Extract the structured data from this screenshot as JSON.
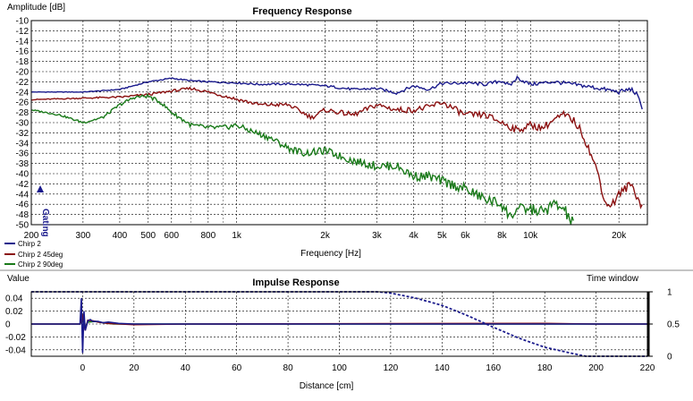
{
  "colors": {
    "series_chirp2": "#1a1a8c",
    "series_chirp2_45deg": "#8b1010",
    "series_chirp2_90deg": "#1a7a1a",
    "window": "#1a1a8c",
    "grid": "#000000",
    "gating_marker": "#1a1a8c"
  },
  "chart_data": [
    {
      "type": "line",
      "title": "Frequency Response",
      "ylabel": "Amplitude [dB]",
      "xlabel": "Frequency [Hz]",
      "xscale": "log",
      "xlim": [
        200,
        25000
      ],
      "ylim": [
        -50,
        -10
      ],
      "y_ticks": [
        -10,
        -12,
        -14,
        -16,
        -18,
        -20,
        -22,
        -24,
        -26,
        -28,
        -30,
        -32,
        -34,
        -36,
        -38,
        -40,
        -42,
        -44,
        -46,
        -48,
        -50
      ],
      "x_ticks": [
        {
          "v": 200,
          "label": "200"
        },
        {
          "v": 300,
          "label": "300"
        },
        {
          "v": 400,
          "label": "400"
        },
        {
          "v": 500,
          "label": "500"
        },
        {
          "v": 600,
          "label": "600"
        },
        {
          "v": 800,
          "label": "800"
        },
        {
          "v": 1000,
          "label": "1k"
        },
        {
          "v": 2000,
          "label": "2k"
        },
        {
          "v": 3000,
          "label": "3k"
        },
        {
          "v": 4000,
          "label": "4k"
        },
        {
          "v": 5000,
          "label": "5k"
        },
        {
          "v": 6000,
          "label": "6k"
        },
        {
          "v": 8000,
          "label": "8k"
        },
        {
          "v": 10000,
          "label": "10k"
        },
        {
          "v": 20000,
          "label": "20k"
        }
      ],
      "grid": true,
      "legend_position": "bottom-left",
      "annotation": "Gating",
      "series": [
        {
          "name": "Chirp 2",
          "color": "#1a1a8c",
          "points": [
            [
              200,
              -24
            ],
            [
              300,
              -24
            ],
            [
              400,
              -23.5
            ],
            [
              500,
              -22
            ],
            [
              600,
              -21.3
            ],
            [
              700,
              -21.8
            ],
            [
              800,
              -22
            ],
            [
              1000,
              -22.2
            ],
            [
              1200,
              -22.5
            ],
            [
              1500,
              -22.4
            ],
            [
              2000,
              -22.8
            ],
            [
              2500,
              -23.5
            ],
            [
              3000,
              -23.3
            ],
            [
              3500,
              -24.2
            ],
            [
              4000,
              -22.8
            ],
            [
              4500,
              -23.5
            ],
            [
              5000,
              -22.3
            ],
            [
              5500,
              -22.3
            ],
            [
              6000,
              -22.2
            ],
            [
              7000,
              -22.5
            ],
            [
              8000,
              -21.8
            ],
            [
              8500,
              -22.8
            ],
            [
              9000,
              -21.2
            ],
            [
              10000,
              -22.5
            ],
            [
              12000,
              -22
            ],
            [
              14000,
              -22.5
            ],
            [
              16000,
              -23
            ],
            [
              18000,
              -23.5
            ],
            [
              20000,
              -24
            ],
            [
              22000,
              -23.4
            ],
            [
              23000,
              -24.5
            ],
            [
              24000,
              -27
            ]
          ]
        },
        {
          "name": "Chirp 2 45deg",
          "color": "#8b1010",
          "points": [
            [
              200,
              -25.5
            ],
            [
              300,
              -25.2
            ],
            [
              400,
              -25
            ],
            [
              500,
              -24.5
            ],
            [
              600,
              -23.8
            ],
            [
              700,
              -23.3
            ],
            [
              800,
              -24
            ],
            [
              1000,
              -25.4
            ],
            [
              1200,
              -26.5
            ],
            [
              1500,
              -26.5
            ],
            [
              1800,
              -29
            ],
            [
              2000,
              -27.5
            ],
            [
              2500,
              -28.5
            ],
            [
              3000,
              -26.5
            ],
            [
              3500,
              -27.5
            ],
            [
              4000,
              -27.5
            ],
            [
              4500,
              -27
            ],
            [
              5000,
              -26
            ],
            [
              6000,
              -28.5
            ],
            [
              7000,
              -28.5
            ],
            [
              8000,
              -30
            ],
            [
              9000,
              -31.5
            ],
            [
              10000,
              -30.5
            ],
            [
              11000,
              -31
            ],
            [
              12000,
              -29.5
            ],
            [
              13000,
              -28.5
            ],
            [
              14000,
              -29.5
            ],
            [
              15000,
              -32
            ],
            [
              16000,
              -36
            ],
            [
              17000,
              -40
            ],
            [
              18000,
              -46
            ],
            [
              19000,
              -46
            ],
            [
              20000,
              -44
            ],
            [
              22000,
              -42
            ],
            [
              24000,
              -46.5
            ]
          ]
        },
        {
          "name": "Chirp 2 90deg",
          "color": "#1a7a1a",
          "points": [
            [
              200,
              -27.5
            ],
            [
              250,
              -28.5
            ],
            [
              300,
              -30
            ],
            [
              350,
              -29
            ],
            [
              400,
              -26.5
            ],
            [
              450,
              -25
            ],
            [
              500,
              -24.8
            ],
            [
              550,
              -26
            ],
            [
              600,
              -28
            ],
            [
              700,
              -30.5
            ],
            [
              800,
              -31
            ],
            [
              900,
              -31
            ],
            [
              1000,
              -30.5
            ],
            [
              1100,
              -31.5
            ],
            [
              1300,
              -33
            ],
            [
              1500,
              -35
            ],
            [
              1700,
              -36
            ],
            [
              2000,
              -35.5
            ],
            [
              2500,
              -37.5
            ],
            [
              3000,
              -38.5
            ],
            [
              3500,
              -38.5
            ],
            [
              4000,
              -40.5
            ],
            [
              4500,
              -40.5
            ],
            [
              5000,
              -41.5
            ],
            [
              6000,
              -43
            ],
            [
              7000,
              -45
            ],
            [
              8000,
              -46
            ],
            [
              8500,
              -48.5
            ],
            [
              9000,
              -47
            ],
            [
              10000,
              -47
            ],
            [
              11000,
              -47.5
            ],
            [
              12000,
              -46
            ],
            [
              13000,
              -47
            ],
            [
              14000,
              -50
            ]
          ]
        }
      ]
    },
    {
      "type": "line",
      "title": "Impulse Response",
      "ylabel": "Value",
      "y2label": "Time window",
      "xlabel": "Distance [cm]",
      "xlim": [
        -20,
        220
      ],
      "ylim": [
        -0.05,
        0.05
      ],
      "y2lim": [
        0,
        1
      ],
      "x_ticks": [
        0,
        20,
        40,
        60,
        80,
        100,
        120,
        140,
        160,
        180,
        200,
        220
      ],
      "y_ticks": [
        {
          "v": 0.04,
          "label": "0.04"
        },
        {
          "v": 0.02,
          "label": "0.02"
        },
        {
          "v": 0,
          "label": "0"
        },
        {
          "v": -0.02,
          "label": "-0.02"
        },
        {
          "v": -0.04,
          "label": "-0.04"
        }
      ],
      "y2_ticks": [
        {
          "v": 1,
          "label": "1"
        },
        {
          "v": 0.5,
          "label": "0.5"
        },
        {
          "v": 0,
          "label": "0"
        }
      ],
      "grid": true,
      "series": [
        {
          "name": "Chirp 2 90deg",
          "color": "#1a7a1a",
          "points": [
            [
              -20,
              0
            ],
            [
              -1,
              0
            ],
            [
              0,
              0.006
            ],
            [
              1,
              -0.005
            ],
            [
              2,
              0.003
            ],
            [
              5,
              0.004
            ],
            [
              8,
              0.002
            ],
            [
              12,
              0
            ],
            [
              220,
              0
            ]
          ]
        },
        {
          "name": "Chirp 2 45deg",
          "color": "#8b1010",
          "points": [
            [
              -20,
              0
            ],
            [
              -1,
              0
            ],
            [
              0,
              0.012
            ],
            [
              1,
              -0.01
            ],
            [
              2,
              0.006
            ],
            [
              4,
              0.005
            ],
            [
              6,
              0.003
            ],
            [
              10,
              0.001
            ],
            [
              20,
              -0.001
            ],
            [
              40,
              0
            ],
            [
              180,
              0.001
            ],
            [
              200,
              0
            ],
            [
              220,
              0
            ]
          ]
        },
        {
          "name": "Chirp 2",
          "color": "#1a1a8c",
          "points": [
            [
              -20,
              0
            ],
            [
              -1,
              0
            ],
            [
              -0.5,
              0.04
            ],
            [
              0,
              -0.045
            ],
            [
              0.5,
              0.02
            ],
            [
              1,
              -0.01
            ],
            [
              2,
              0.005
            ],
            [
              3,
              0.007
            ],
            [
              4,
              0.004
            ],
            [
              6,
              0.004
            ],
            [
              8,
              0.002
            ],
            [
              10,
              0.003
            ],
            [
              14,
              0.001
            ],
            [
              20,
              0
            ],
            [
              220,
              0
            ]
          ]
        },
        {
          "name": "Time window",
          "color": "#1a1a8c",
          "style": "dashed",
          "axis": "y2",
          "points": [
            [
              -20,
              1
            ],
            [
              115,
              1
            ],
            [
              120,
              0.98
            ],
            [
              130,
              0.9
            ],
            [
              140,
              0.79
            ],
            [
              150,
              0.63
            ],
            [
              160,
              0.45
            ],
            [
              170,
              0.28
            ],
            [
              180,
              0.14
            ],
            [
              190,
              0.05
            ],
            [
              196,
              0
            ],
            [
              220,
              0
            ]
          ]
        }
      ]
    }
  ]
}
